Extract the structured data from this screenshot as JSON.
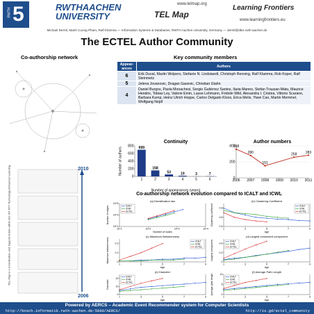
{
  "header": {
    "logo_top": "RWTH",
    "logo_number": "5",
    "university": "RWTHAACHEN UNIVERSITY",
    "url1": "www.telmap.org",
    "project": "TEL Map",
    "partner": "Learning Frontiers",
    "url2": "www.learningfrontiers.eu",
    "authors": "Michael Derntl, Manh Cuong Pham, Ralf Klamma — Information Systems & Databases, RWTH Aachen University, Germany — derntl@dbis.rwth-aachen.de"
  },
  "title": "The ECTEL Author Community",
  "left": {
    "heading": "Co-authorship network",
    "year_top": "2010",
    "year_bottom": "2006",
    "side_note": "TEL-Map is a Coordination and Support Action within EC IST FP7 Technology Enhanced Learning"
  },
  "members": {
    "heading": "Key community members",
    "table": {
      "columns": [
        "Appear-ances",
        "Authors"
      ],
      "rows": [
        [
          "6",
          "Erik Duval, Martin Wolpers, Stefanie N. Lindstaedt, Christoph Rensing, Ralf Klamma, Rob Koper, Ralf Steinmetz"
        ],
        [
          "5",
          "Jelena Jovanovic, Dragan Gasevic, Christian Glahn"
        ],
        [
          "4",
          "Daniel Burgos, Paola Monachesi, Sergio Gutiérrez Santos, Ilaria Manno, Stefan Trausan-Matu, Maurice Hendrix, Tobias Ley, Valerie Emin, Lasse Lehmann, Fridolin Wild, Alexandra I. Cristea, Vittorio Scarano, Barbara Kump, Heinz Ulrich Hoppe, Carlos Delgado Kloos, Erica Melis, Yiwei Cao, Martin Memmel, Wolfgang Nejdl"
        ]
      ]
    }
  },
  "evolution_heading": "Co-authorship network evolution compared to ICALT and ICWL",
  "chart_data": [
    {
      "type": "bar",
      "title": "Continuity",
      "xlabel": "Number of appearances (years)",
      "ylabel": "Number of authors",
      "categories": [
        "1",
        "2",
        "3",
        "4",
        "5",
        "6"
      ],
      "values": [
        699,
        158,
        53,
        19,
        3,
        7
      ],
      "color": "#1f3c88",
      "ylim": [
        0,
        800
      ],
      "yticks": [
        0,
        200,
        400,
        600,
        800
      ],
      "data_labels": true,
      "grid": false
    },
    {
      "type": "line",
      "title": "Author numbers",
      "x": [
        2006,
        2007,
        2008,
        2010,
        2011
      ],
      "xlim": [
        2006,
        2011
      ],
      "xticks": [
        2006,
        2007,
        2008,
        2009,
        2010,
        2011
      ],
      "series": [
        {
          "name": "Authors",
          "color": "#c0392b",
          "values": [
            358,
            280,
            151,
            258,
            283
          ]
        }
      ],
      "ylim": [
        0,
        400
      ],
      "yticks": [
        0,
        200,
        400
      ],
      "data_labels": true,
      "grid": true
    },
    {
      "type": "line",
      "title": "(a) Densification law",
      "xlabel": "Number of nodes",
      "ylabel": "Number of edges",
      "xscale": "log",
      "yscale": "log",
      "x": [
        100,
        200,
        400,
        800,
        1600
      ],
      "xlim": [
        10,
        10000
      ],
      "xticks": [
        {
          "value": 10,
          "label": "10^1"
        },
        {
          "value": 100,
          "label": "10^2"
        },
        {
          "value": 1000,
          "label": "10^3"
        },
        {
          "value": 10000,
          "label": "10^4"
        }
      ],
      "ylim": [
        10,
        100000
      ],
      "yticks": [
        {
          "value": 10,
          "label": "10^1"
        },
        {
          "value": 1000,
          "label": "10^3"
        },
        {
          "value": 100000,
          "label": "10^5"
        }
      ],
      "legend": "upper left",
      "grid": false,
      "series": [
        {
          "name": "ICALT",
          "color": "#1f4fd6",
          "values": [
            200,
            500,
            1300,
            3500,
            9000
          ]
        },
        {
          "name": "ICWL",
          "color": "#2ca02c",
          "values": [
            150,
            350,
            800,
            2000,
            null
          ]
        },
        {
          "name": "ECTEL",
          "color": "#d62728",
          "values": [
            250,
            700,
            2000,
            6000,
            null
          ]
        }
      ]
    },
    {
      "type": "line",
      "title": "(b) Clustering Coefficient",
      "xlabel": "Age",
      "ylabel": "Clustering coefficient",
      "x": [
        1,
        2,
        3,
        4,
        5,
        6,
        7,
        8,
        9
      ],
      "xlim": [
        1,
        9
      ],
      "xticks": [
        1,
        3,
        5,
        7,
        9
      ],
      "ylim": [
        0.4,
        0.9
      ],
      "yticks": [
        0.4,
        0.6,
        0.8
      ],
      "legend": "upper right",
      "grid": false,
      "series": [
        {
          "name": "ICALT",
          "color": "#1f4fd6",
          "values": [
            0.8,
            0.7,
            0.65,
            0.6,
            0.58,
            0.56,
            0.55,
            0.53,
            0.52
          ]
        },
        {
          "name": "ICWL",
          "color": "#2ca02c",
          "values": [
            0.75,
            0.7,
            0.68,
            0.66,
            0.62,
            0.6,
            0.58,
            null,
            null
          ]
        },
        {
          "name": "ECTEL",
          "color": "#d62728",
          "values": [
            0.7,
            0.6,
            0.55,
            0.52,
            0.5,
            null,
            null,
            null,
            null
          ]
        }
      ]
    },
    {
      "type": "line",
      "title": "(c) Maximum Betweenness",
      "xlabel": "Age",
      "ylabel": "Maximum betweenness",
      "x": [
        1,
        2,
        3,
        4,
        5,
        6,
        7,
        8,
        9
      ],
      "xlim": [
        1,
        9
      ],
      "xticks": [
        1,
        3,
        5,
        7,
        9
      ],
      "ylim": [
        0,
        0.25
      ],
      "yticks": [
        0,
        0.1,
        0.2
      ],
      "legend": "upper right",
      "grid": false,
      "series": [
        {
          "name": "ICALT",
          "color": "#1f4fd6",
          "values": [
            0.01,
            0.01,
            0.02,
            0.02,
            0.03,
            0.03,
            0.04,
            0.04,
            0.05
          ]
        },
        {
          "name": "ICWL",
          "color": "#2ca02c",
          "values": [
            0.01,
            0.01,
            0.01,
            0.02,
            0.02,
            0.02,
            0.03,
            null,
            null
          ]
        },
        {
          "name": "ECTEL",
          "color": "#d62728",
          "values": [
            0.02,
            0.06,
            0.1,
            0.15,
            0.2,
            null,
            null,
            null,
            null
          ]
        }
      ]
    },
    {
      "type": "line",
      "title": "(d) Largest connected component",
      "xlabel": "Age",
      "ylabel": "Largest component",
      "x": [
        1,
        2,
        3,
        4,
        5,
        6,
        7,
        8,
        9
      ],
      "xlim": [
        1,
        9
      ],
      "xticks": [
        1,
        3,
        5,
        7,
        9
      ],
      "ylim": [
        0,
        0.5
      ],
      "yticks": [
        0,
        0.2,
        0.4
      ],
      "legend": "upper left",
      "grid": false,
      "series": [
        {
          "name": "ICALT",
          "color": "#1f4fd6",
          "values": [
            0.05,
            0.08,
            0.1,
            0.14,
            0.17,
            0.2,
            0.23,
            0.27,
            0.3
          ]
        },
        {
          "name": "ICWL",
          "color": "#2ca02c",
          "values": [
            0.04,
            0.06,
            0.1,
            0.13,
            0.17,
            0.21,
            0.25,
            null,
            null
          ]
        },
        {
          "name": "ECTEL",
          "color": "#d62728",
          "values": [
            0.08,
            0.18,
            0.28,
            0.37,
            0.45,
            null,
            null,
            null,
            null
          ]
        }
      ]
    },
    {
      "type": "line",
      "title": "(e) Diameter",
      "xlabel": "Age",
      "ylabel": "Diameter",
      "x": [
        1,
        2,
        3,
        4,
        5,
        6,
        7,
        8,
        9
      ],
      "xlim": [
        1,
        9
      ],
      "xticks": [
        1,
        3,
        5,
        7,
        9
      ],
      "ylim": [
        0,
        25
      ],
      "yticks": [
        0,
        10,
        20
      ],
      "legend": "upper left",
      "grid": false,
      "series": [
        {
          "name": "ICALT",
          "color": "#1f4fd6",
          "values": [
            5,
            7,
            9,
            10,
            11,
            12,
            13,
            14,
            15
          ]
        },
        {
          "name": "ICWL",
          "color": "#2ca02c",
          "values": [
            4,
            5,
            6,
            7,
            8,
            9,
            10,
            null,
            null
          ]
        },
        {
          "name": "ECTEL",
          "color": "#d62728",
          "values": [
            6,
            10,
            14,
            17,
            20,
            null,
            null,
            null,
            null
          ]
        }
      ]
    },
    {
      "type": "line",
      "title": "(f) Average Path Length",
      "xlabel": "Age",
      "ylabel": "Average path length",
      "x": [
        1,
        2,
        3,
        4,
        5,
        6,
        7,
        8,
        9
      ],
      "xlim": [
        1,
        9
      ],
      "xticks": [
        1,
        3,
        5,
        7,
        9
      ],
      "ylim": [
        0,
        10
      ],
      "yticks": [
        0,
        5,
        10
      ],
      "legend": "upper left",
      "grid": false,
      "series": [
        {
          "name": "ICALT",
          "color": "#1f4fd6",
          "values": [
            2.5,
            3,
            3.5,
            4,
            4.5,
            5,
            5.3,
            5.7,
            6
          ]
        },
        {
          "name": "ICWL",
          "color": "#2ca02c",
          "values": [
            2,
            2.5,
            3,
            3.5,
            4,
            4.5,
            5,
            null,
            null
          ]
        },
        {
          "name": "ECTEL",
          "color": "#d62728",
          "values": [
            3,
            4.5,
            6,
            7,
            8,
            null,
            null,
            null,
            null
          ]
        }
      ]
    }
  ],
  "footer": {
    "powered": "Powered by AERCS – Academic Event Recommender system for Computer Scientists",
    "link1": "http://bosch.informatik.rwth-aachen.de:5080/AERCS/",
    "link2": "http://is.gd/ectel_community"
  }
}
